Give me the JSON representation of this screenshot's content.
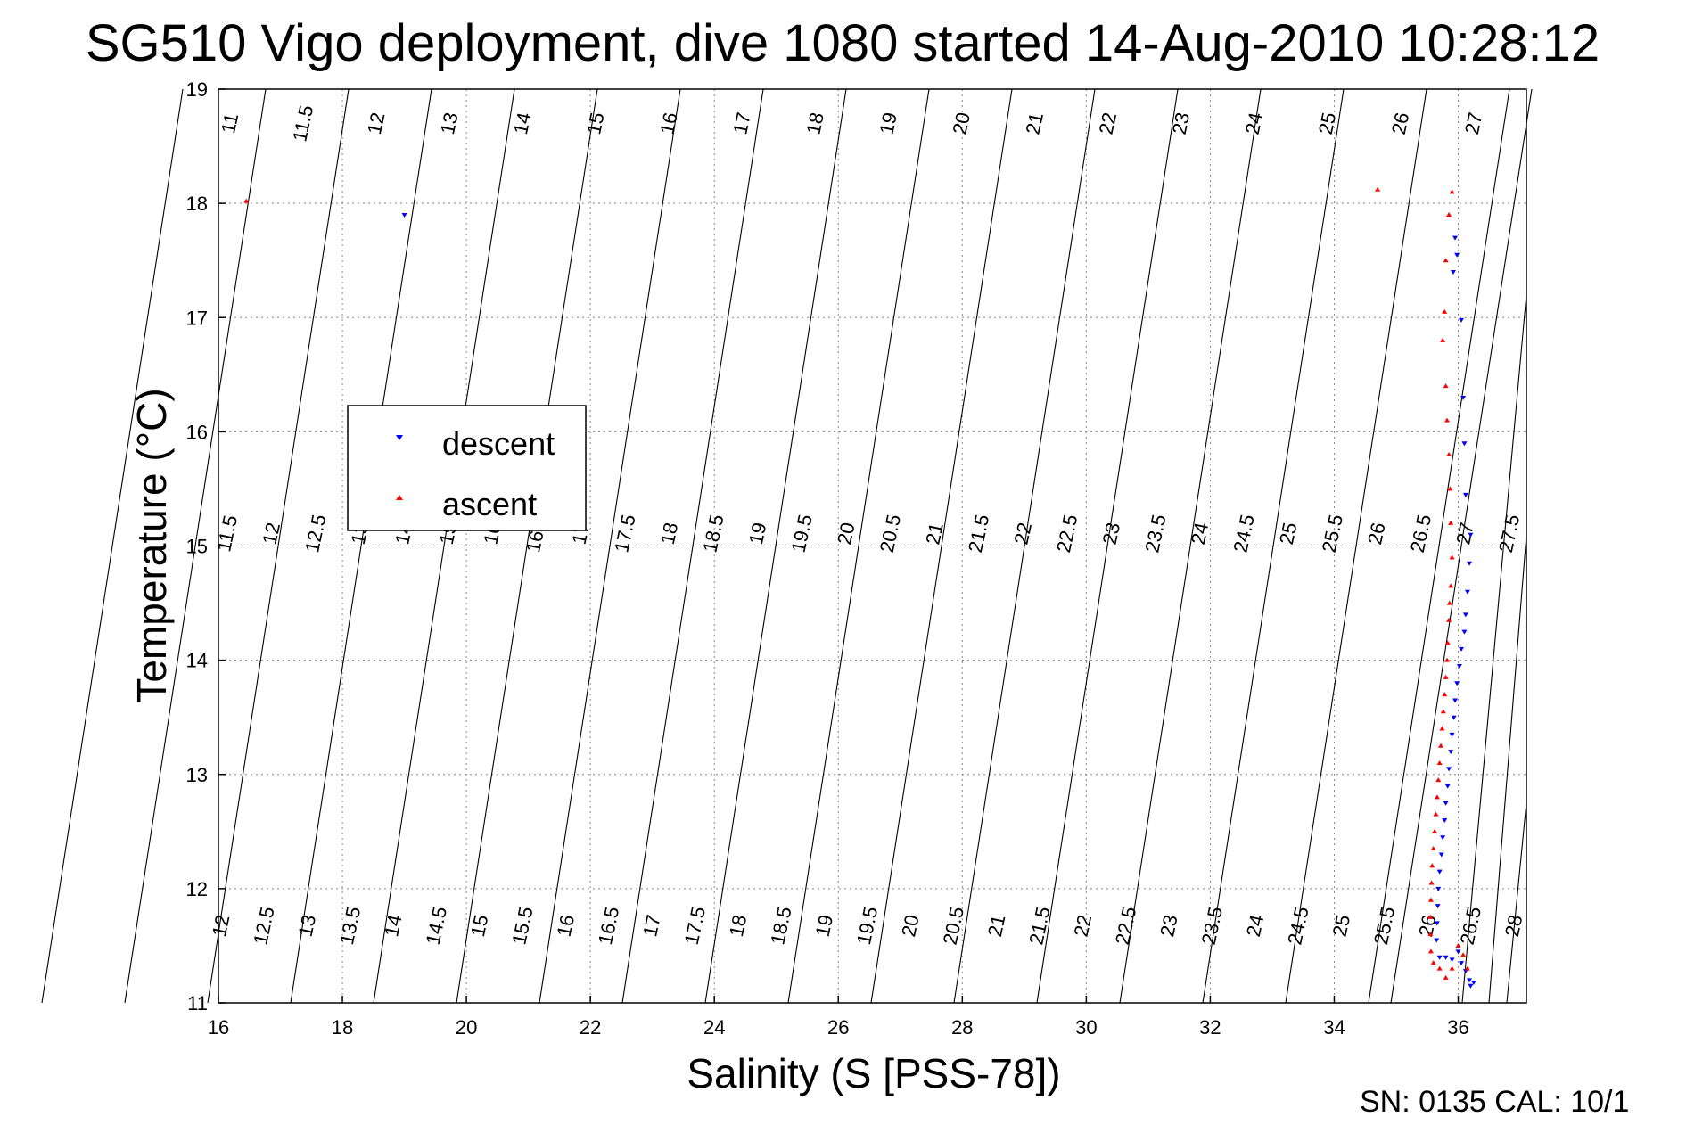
{
  "chart_data": {
    "type": "scatter",
    "title": "SG510 Vigo deployment, dive 1080 started 14-Aug-2010 10:28:12",
    "xlabel": "Salinity (S [PSS-78])",
    "ylabel": "Temperature (°C)",
    "xlim": [
      16,
      37.1
    ],
    "ylim": [
      11,
      19
    ],
    "xticks": [
      16,
      18,
      20,
      22,
      24,
      26,
      28,
      30,
      32,
      34,
      36
    ],
    "yticks": [
      11,
      12,
      13,
      14,
      15,
      16,
      17,
      18,
      19
    ],
    "grid": true,
    "legend_position": "center-left",
    "footer_text": "SN: 0135  CAL: 10/1",
    "isopycnals": {
      "top_labels": [
        "11",
        "11.5",
        "12",
        "13",
        "14",
        "15",
        "16",
        "17",
        "18",
        "19",
        "20",
        "21",
        "22",
        "23",
        "24",
        "25",
        "26",
        "27"
      ],
      "mid_labels": [
        "11.5",
        "12",
        "12.5",
        "13",
        "14",
        "15",
        "16",
        "16.5",
        "17",
        "17.5",
        "18",
        "18.5",
        "19",
        "19.5",
        "20",
        "20.5",
        "21",
        "21.5",
        "22",
        "22.5",
        "23",
        "23.5",
        "24",
        "24.5",
        "25",
        "25.5",
        "26",
        "26.5",
        "27",
        "27.5"
      ],
      "bottom_labels": [
        "12",
        "12.5",
        "13",
        "13.5",
        "14",
        "14.5",
        "15",
        "15.5",
        "16",
        "16.5",
        "17",
        "17.5",
        "18",
        "18.5",
        "19",
        "19.5",
        "20",
        "20.5",
        "21",
        "21.5",
        "22",
        "22.5",
        "23",
        "23.5",
        "24",
        "24.5",
        "25",
        "25.5",
        "26",
        "26.5",
        "28"
      ]
    },
    "series": [
      {
        "name": "descent",
        "color": "#0000ff",
        "marker": "triangle-down",
        "points": [
          [
            19.0,
            17.9
          ],
          [
            35.95,
            17.7
          ],
          [
            35.98,
            17.55
          ],
          [
            35.92,
            17.4
          ],
          [
            36.05,
            16.98
          ],
          [
            36.08,
            16.3
          ],
          [
            36.1,
            15.9
          ],
          [
            36.12,
            15.45
          ],
          [
            36.2,
            15.1
          ],
          [
            36.18,
            14.85
          ],
          [
            36.15,
            14.6
          ],
          [
            36.12,
            14.4
          ],
          [
            36.1,
            14.25
          ],
          [
            36.05,
            14.1
          ],
          [
            36.02,
            13.95
          ],
          [
            35.98,
            13.8
          ],
          [
            35.95,
            13.65
          ],
          [
            35.93,
            13.5
          ],
          [
            35.9,
            13.35
          ],
          [
            35.88,
            13.2
          ],
          [
            35.85,
            13.05
          ],
          [
            35.83,
            12.9
          ],
          [
            35.8,
            12.75
          ],
          [
            35.78,
            12.6
          ],
          [
            35.75,
            12.45
          ],
          [
            35.73,
            12.3
          ],
          [
            35.7,
            12.15
          ],
          [
            35.68,
            12.0
          ],
          [
            35.67,
            11.85
          ],
          [
            35.66,
            11.7
          ],
          [
            35.65,
            11.55
          ],
          [
            35.7,
            11.4
          ],
          [
            35.8,
            11.4
          ],
          [
            35.9,
            11.38
          ],
          [
            36.0,
            11.45
          ],
          [
            36.05,
            11.35
          ],
          [
            36.12,
            11.28
          ],
          [
            36.18,
            11.2
          ],
          [
            36.2,
            11.15
          ],
          [
            36.25,
            11.18
          ]
        ]
      },
      {
        "name": "ascent",
        "color": "#ff0000",
        "marker": "triangle-up",
        "points": [
          [
            16.45,
            18.02
          ],
          [
            34.7,
            18.12
          ],
          [
            35.9,
            18.1
          ],
          [
            35.85,
            17.9
          ],
          [
            35.8,
            17.5
          ],
          [
            35.78,
            17.05
          ],
          [
            35.75,
            16.8
          ],
          [
            35.8,
            16.4
          ],
          [
            35.82,
            16.1
          ],
          [
            35.85,
            15.8
          ],
          [
            35.87,
            15.5
          ],
          [
            35.88,
            15.2
          ],
          [
            35.9,
            14.9
          ],
          [
            35.88,
            14.65
          ],
          [
            35.86,
            14.5
          ],
          [
            35.85,
            14.35
          ],
          [
            35.83,
            14.15
          ],
          [
            35.82,
            14.0
          ],
          [
            35.8,
            13.85
          ],
          [
            35.78,
            13.7
          ],
          [
            35.76,
            13.55
          ],
          [
            35.74,
            13.4
          ],
          [
            35.72,
            13.25
          ],
          [
            35.7,
            13.1
          ],
          [
            35.68,
            12.95
          ],
          [
            35.66,
            12.8
          ],
          [
            35.64,
            12.65
          ],
          [
            35.62,
            12.5
          ],
          [
            35.6,
            12.35
          ],
          [
            35.58,
            12.2
          ],
          [
            35.57,
            12.05
          ],
          [
            35.56,
            11.9
          ],
          [
            35.55,
            11.75
          ],
          [
            35.55,
            11.6
          ],
          [
            35.56,
            11.45
          ],
          [
            35.6,
            11.35
          ],
          [
            35.7,
            11.3
          ],
          [
            35.8,
            11.22
          ],
          [
            35.9,
            11.3
          ],
          [
            36.0,
            11.5
          ],
          [
            36.08,
            11.42
          ],
          [
            36.15,
            11.3
          ]
        ]
      }
    ]
  }
}
